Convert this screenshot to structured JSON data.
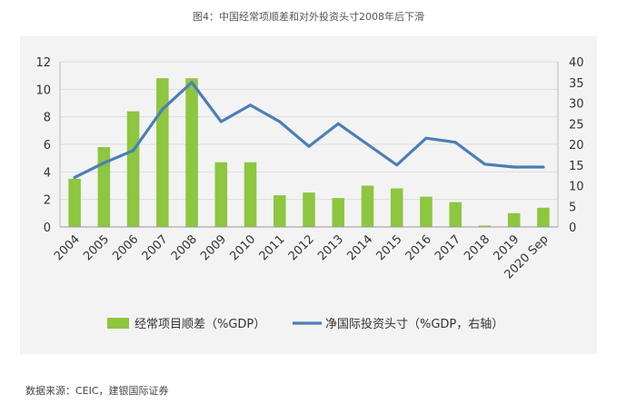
{
  "title": "图4：中国经常项顺差和对外投资头寸2008年后下滑",
  "source": "数据来源：CEIC，建银国际证券",
  "chart_data": {
    "type": "bar+line",
    "categories": [
      "2004",
      "2005",
      "2006",
      "2007",
      "2008",
      "2009",
      "2010",
      "2011",
      "2012",
      "2013",
      "2014",
      "2015",
      "2016",
      "2017",
      "2018",
      "2019",
      "2020 Sep"
    ],
    "series": [
      {
        "name": "经常项目顺差（%GDP）",
        "type": "bar",
        "axis": "left",
        "color": "#8dc63f",
        "values": [
          3.5,
          5.8,
          8.4,
          10.8,
          10.8,
          4.7,
          4.7,
          2.3,
          2.5,
          2.1,
          3.0,
          2.8,
          2.2,
          1.8,
          0.1,
          1.0,
          1.4
        ]
      },
      {
        "name": "净国际投资头寸（%GDP，右轴）",
        "type": "line",
        "axis": "right",
        "color": "#4a7fb5",
        "values": [
          12,
          15.5,
          18.5,
          28.5,
          35,
          25.5,
          29.5,
          25.5,
          19.5,
          25,
          20,
          15,
          21.5,
          20.5,
          15.2,
          14.5,
          14.5
        ]
      }
    ],
    "yleft": {
      "min": 0,
      "max": 12,
      "ticks": [
        0,
        2,
        4,
        6,
        8,
        10,
        12
      ]
    },
    "yright": {
      "min": 0,
      "max": 40,
      "ticks": [
        0,
        5,
        10,
        15,
        20,
        25,
        30,
        35,
        40
      ]
    },
    "legend": "bottom"
  }
}
